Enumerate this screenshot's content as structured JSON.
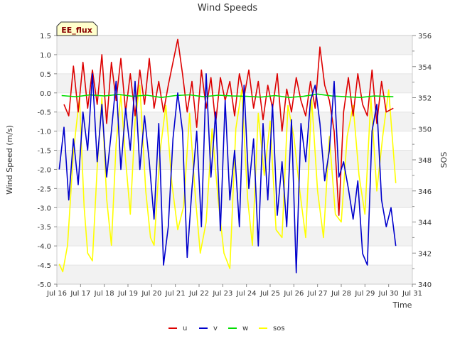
{
  "chart_data": {
    "type": "line",
    "title": "Wind Speeds",
    "xlabel": "Time",
    "ylabel": "Wind Speed (m/s)",
    "y2label": "SOS",
    "badge": "EE_flux",
    "xlim": [
      16,
      31
    ],
    "ylim": [
      -5.0,
      1.5
    ],
    "y2lim": [
      340,
      356
    ],
    "x_ticks": [
      {
        "value": 16,
        "label": "Jul 16"
      },
      {
        "value": 17,
        "label": "Jul 17"
      },
      {
        "value": 18,
        "label": "Jul 18"
      },
      {
        "value": 19,
        "label": "Jul 19"
      },
      {
        "value": 20,
        "label": "Jul 20"
      },
      {
        "value": 21,
        "label": "Jul 21"
      },
      {
        "value": 22,
        "label": "Jul 22"
      },
      {
        "value": 23,
        "label": "Jul 23"
      },
      {
        "value": 24,
        "label": "Jul 24"
      },
      {
        "value": 25,
        "label": "Jul 25"
      },
      {
        "value": 26,
        "label": "Jul 26"
      },
      {
        "value": 27,
        "label": "Jul 27"
      },
      {
        "value": 28,
        "label": "Jul 28"
      },
      {
        "value": 29,
        "label": "Jul 29"
      },
      {
        "value": 30,
        "label": "Jul 30"
      },
      {
        "value": 31,
        "label": "Jul 31"
      }
    ],
    "y_ticks": [
      {
        "value": 1.5,
        "label": "1.5"
      },
      {
        "value": 1.0,
        "label": "1.0"
      },
      {
        "value": 0.5,
        "label": "0.5"
      },
      {
        "value": 0.0,
        "label": "0.0"
      },
      {
        "value": -0.5,
        "label": "-0.5"
      },
      {
        "value": -1.0,
        "label": "-1.0"
      },
      {
        "value": -1.5,
        "label": "-1.5"
      },
      {
        "value": -2.0,
        "label": "-2.0"
      },
      {
        "value": -2.5,
        "label": "-2.5"
      },
      {
        "value": -3.0,
        "label": "-3.0"
      },
      {
        "value": -3.5,
        "label": "-3.5"
      },
      {
        "value": -4.0,
        "label": "-4.0"
      },
      {
        "value": -4.5,
        "label": "-4.5"
      },
      {
        "value": -5.0,
        "label": "-5.0"
      }
    ],
    "y2_ticks": [
      {
        "value": 340,
        "label": "340"
      },
      {
        "value": 342,
        "label": "342"
      },
      {
        "value": 344,
        "label": "344"
      },
      {
        "value": 346,
        "label": "346"
      },
      {
        "value": 348,
        "label": "348"
      },
      {
        "value": 350,
        "label": "350"
      },
      {
        "value": 352,
        "label": "352"
      },
      {
        "value": 354,
        "label": "354"
      },
      {
        "value": 356,
        "label": "356"
      }
    ],
    "legend_position": "bottom-center",
    "series": [
      {
        "name": "u",
        "color": "#dd0000",
        "axis": "left",
        "x": [
          16.3,
          16.5,
          16.7,
          16.9,
          17.1,
          17.3,
          17.5,
          17.7,
          17.9,
          18.1,
          18.3,
          18.5,
          18.7,
          18.9,
          19.1,
          19.3,
          19.5,
          19.7,
          19.9,
          20.1,
          20.3,
          20.5,
          20.7,
          20.9,
          21.1,
          21.3,
          21.5,
          21.7,
          21.9,
          22.1,
          22.3,
          22.5,
          22.7,
          22.9,
          23.1,
          23.3,
          23.5,
          23.7,
          23.9,
          24.1,
          24.3,
          24.5,
          24.7,
          24.9,
          25.1,
          25.3,
          25.5,
          25.7,
          25.9,
          26.1,
          26.3,
          26.5,
          26.7,
          26.9,
          27.1,
          27.3,
          27.5,
          27.7,
          27.9,
          28.1,
          28.3,
          28.5,
          28.7,
          28.9,
          29.1,
          29.3,
          29.5,
          29.7,
          29.9,
          30.2
        ],
        "values": [
          -0.3,
          -0.6,
          0.7,
          -0.5,
          0.8,
          -0.4,
          0.6,
          -0.3,
          1.0,
          -0.8,
          0.8,
          -0.2,
          0.9,
          -0.5,
          0.5,
          -0.6,
          0.6,
          -0.3,
          0.9,
          -0.4,
          0.3,
          -0.5,
          0.2,
          0.8,
          1.4,
          0.5,
          -0.5,
          0.3,
          -0.9,
          0.6,
          -0.4,
          0.4,
          -0.8,
          0.4,
          -0.2,
          0.3,
          -0.6,
          0.5,
          -0.1,
          0.6,
          -0.4,
          0.3,
          -0.7,
          0.2,
          -0.4,
          0.5,
          -1.0,
          0.1,
          -0.5,
          0.4,
          -0.2,
          -0.6,
          0.3,
          -0.4,
          1.2,
          0.2,
          -0.2,
          -1.0,
          -3.2,
          -0.5,
          0.4,
          -0.6,
          0.5,
          -0.3,
          -0.6,
          0.6,
          -0.8,
          0.3,
          -0.5,
          -0.4
        ]
      },
      {
        "name": "v",
        "color": "#0000cc",
        "axis": "left",
        "x": [
          16.1,
          16.3,
          16.5,
          16.7,
          16.9,
          17.1,
          17.3,
          17.5,
          17.7,
          17.9,
          18.1,
          18.3,
          18.5,
          18.7,
          18.9,
          19.1,
          19.3,
          19.5,
          19.7,
          19.9,
          20.1,
          20.3,
          20.5,
          20.7,
          20.9,
          21.1,
          21.3,
          21.5,
          21.7,
          21.9,
          22.1,
          22.3,
          22.5,
          22.7,
          22.9,
          23.1,
          23.3,
          23.5,
          23.7,
          23.9,
          24.1,
          24.3,
          24.5,
          24.7,
          24.9,
          25.1,
          25.3,
          25.5,
          25.7,
          25.9,
          26.1,
          26.3,
          26.5,
          26.7,
          26.9,
          27.1,
          27.3,
          27.5,
          27.7,
          27.9,
          28.1,
          28.3,
          28.5,
          28.7,
          28.9,
          29.1,
          29.3,
          29.5,
          29.7,
          29.9,
          30.1,
          30.3
        ],
        "values": [
          -2.0,
          -0.9,
          -2.8,
          -1.2,
          -2.4,
          -0.5,
          -1.5,
          0.5,
          -1.8,
          -0.3,
          -2.2,
          -1.0,
          0.3,
          -2.0,
          -0.4,
          -1.5,
          0.3,
          -2.0,
          -0.6,
          -1.8,
          -3.3,
          -0.8,
          -4.5,
          -3.5,
          -1.2,
          0.0,
          -1.0,
          -4.3,
          -2.5,
          -1.0,
          -3.5,
          0.5,
          -2.2,
          -0.5,
          -3.6,
          -0.2,
          -2.8,
          -1.5,
          -3.5,
          0.2,
          -2.5,
          -1.2,
          -4.0,
          -0.8,
          -2.8,
          -0.3,
          -3.2,
          -1.8,
          -3.5,
          -0.7,
          -4.7,
          -0.8,
          -1.8,
          -0.2,
          0.2,
          -0.8,
          -2.3,
          -1.5,
          0.3,
          -2.2,
          -1.8,
          -2.5,
          -3.3,
          -2.3,
          -4.2,
          -4.5,
          -1.0,
          -0.3,
          -2.8,
          -3.5,
          -3.0,
          -4.0
        ]
      },
      {
        "name": "w",
        "color": "#00dd00",
        "axis": "left",
        "x": [
          16.2,
          16.8,
          17.4,
          18.0,
          18.6,
          19.2,
          19.8,
          20.4,
          21.0,
          21.6,
          22.2,
          22.8,
          23.4,
          24.0,
          24.6,
          25.2,
          25.8,
          26.4,
          27.0,
          27.6,
          28.2,
          28.8,
          29.4,
          30.2
        ],
        "values": [
          -0.07,
          -0.1,
          -0.05,
          -0.08,
          -0.04,
          -0.09,
          -0.06,
          -0.12,
          -0.07,
          -0.05,
          -0.1,
          -0.06,
          -0.08,
          -0.09,
          -0.11,
          -0.07,
          -0.12,
          -0.09,
          -0.03,
          -0.08,
          -0.1,
          -0.12,
          -0.08,
          -0.1
        ]
      },
      {
        "name": "sos",
        "color": "#ffff00",
        "axis": "right",
        "x": [
          16.1,
          16.25,
          16.45,
          16.7,
          16.95,
          17.15,
          17.3,
          17.5,
          17.7,
          17.9,
          18.1,
          18.3,
          18.5,
          18.7,
          18.9,
          19.1,
          19.3,
          19.5,
          19.75,
          19.95,
          20.1,
          20.35,
          20.6,
          20.85,
          21.1,
          21.35,
          21.6,
          21.85,
          22.05,
          22.3,
          22.55,
          22.8,
          23.05,
          23.3,
          23.55,
          23.8,
          24.05,
          24.25,
          24.5,
          24.75,
          25.0,
          25.25,
          25.5,
          25.75,
          26.0,
          26.25,
          26.5,
          26.75,
          27.0,
          27.25,
          27.5,
          27.75,
          28.0,
          28.25,
          28.5,
          28.75,
          29.0,
          29.25,
          29.5,
          29.75,
          30.0,
          30.3
        ],
        "values": [
          341.3,
          340.8,
          342.5,
          348.5,
          352.0,
          345.0,
          342.0,
          341.5,
          347.5,
          352.0,
          345.5,
          342.5,
          349.0,
          352.2,
          348.0,
          344.5,
          350.5,
          352.8,
          346.0,
          343.0,
          342.5,
          348.5,
          351.5,
          346.5,
          343.5,
          345.0,
          351.0,
          345.5,
          342.0,
          344.0,
          350.0,
          345.5,
          342.0,
          341.0,
          350.0,
          352.5,
          345.5,
          342.5,
          351.0,
          347.0,
          350.5,
          343.5,
          343.0,
          351.5,
          349.5,
          346.0,
          343.0,
          352.0,
          346.0,
          343.0,
          349.5,
          344.5,
          344.0,
          349.5,
          351.5,
          347.0,
          344.5,
          352.0,
          346.0,
          349.5,
          352.5,
          346.5
        ]
      }
    ]
  }
}
